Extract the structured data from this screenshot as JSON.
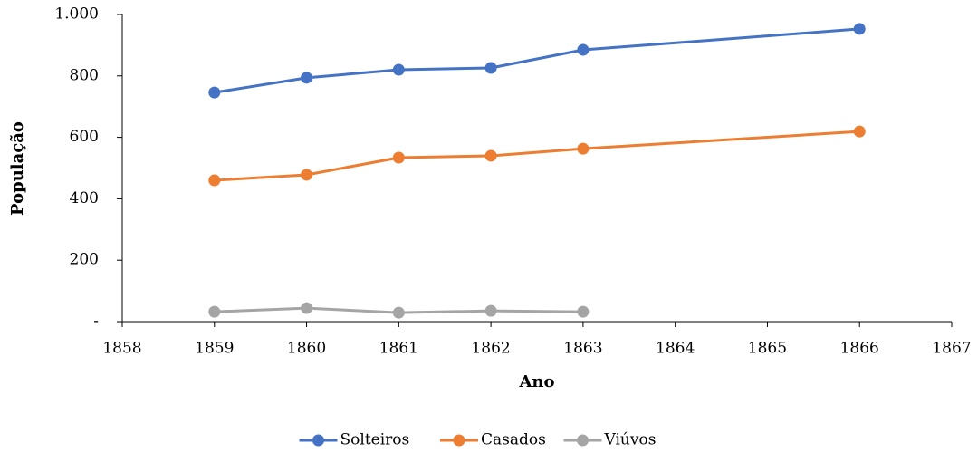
{
  "chart_data": {
    "type": "line",
    "x": [
      1859,
      1860,
      1861,
      1862,
      1863,
      1866
    ],
    "series": [
      {
        "name": "Solteiros",
        "color": "#4472c4",
        "values": [
          746,
          794,
          820,
          826,
          885,
          953
        ]
      },
      {
        "name": "Casados",
        "color": "#ed7d31",
        "values": [
          460,
          478,
          534,
          540,
          563,
          619
        ]
      },
      {
        "name": "Viúvos",
        "color": "#a5a5a5",
        "values": [
          32,
          44,
          29,
          35,
          32,
          null
        ]
      }
    ],
    "xlabel": "Ano",
    "ylabel": "População",
    "xlim": [
      1858,
      1867
    ],
    "xticks": [
      1858,
      1859,
      1860,
      1861,
      1862,
      1863,
      1864,
      1865,
      1866,
      1867
    ],
    "ylim": [
      0,
      1000
    ],
    "yticks": [
      {
        "value": 0,
        "label": "-"
      },
      200,
      400,
      600,
      800,
      {
        "value": 1000,
        "label": "1.000"
      }
    ],
    "legend": "bottom",
    "grid": false
  }
}
